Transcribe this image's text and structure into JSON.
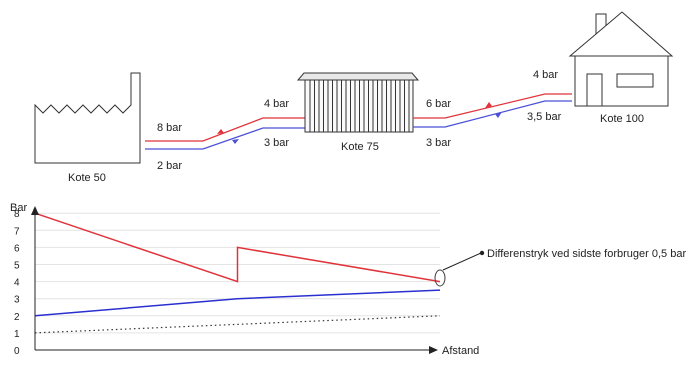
{
  "schematic": {
    "factory": {
      "label": "Kote 50"
    },
    "plant": {
      "label": "Kote 75"
    },
    "house": {
      "label": "Kote 100"
    },
    "pressures": {
      "factory_supply": "8 bar",
      "factory_return": "2 bar",
      "plant_in_supply": "4 bar",
      "plant_in_return": "3 bar",
      "plant_out_supply": "6 bar",
      "plant_out_return": "3 bar",
      "house_supply": "4 bar",
      "house_return": "3,5 bar"
    },
    "colors": {
      "supply": "#e0333a",
      "return": "#4b50d8"
    }
  },
  "chart_data": {
    "type": "line",
    "ylabel": "Bar",
    "xlabel": "Afstand",
    "ylim": [
      0,
      8
    ],
    "yticks": [
      "0",
      "1",
      "2",
      "3",
      "4",
      "5",
      "6",
      "7",
      "8"
    ],
    "x": [
      0,
      0.5,
      0.5,
      1
    ],
    "grid": true,
    "series": [
      {
        "values": [
          8,
          4,
          6,
          4
        ],
        "color": "#e0333a",
        "style": "solid"
      },
      {
        "values": [
          2,
          3,
          3,
          3.5
        ],
        "color": "#2b2fd0",
        "style": "solid"
      },
      {
        "values": [
          1,
          1.5,
          1.5,
          2
        ],
        "color": "#333333",
        "style": "dotted"
      }
    ],
    "annotation": "Differenstryk ved sidste forbruger 0,5 bar"
  }
}
